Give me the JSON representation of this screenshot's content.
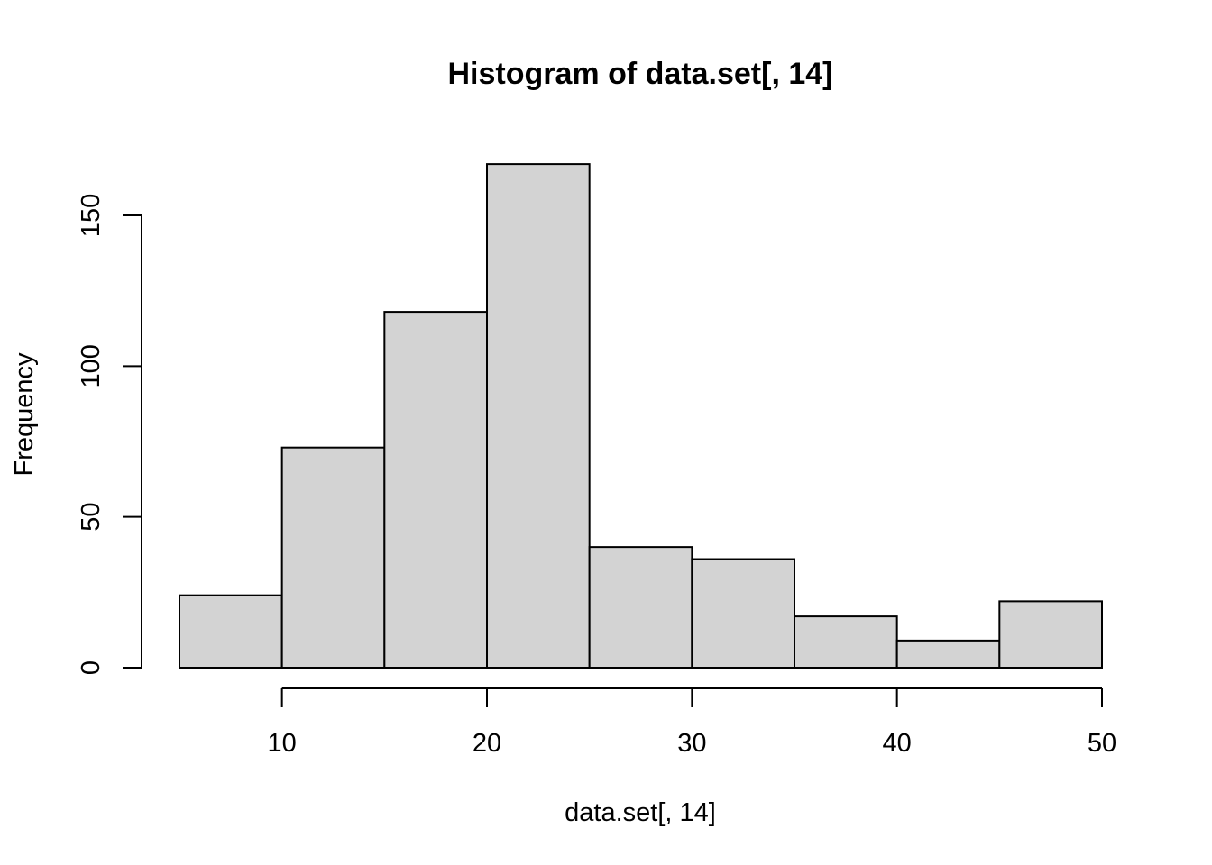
{
  "chart_data": {
    "type": "bar",
    "title": "Histogram of data.set[, 14]",
    "xlabel": "data.set[, 14]",
    "ylabel": "Frequency",
    "bins": [
      {
        "start": 5,
        "end": 10,
        "count": 24
      },
      {
        "start": 10,
        "end": 15,
        "count": 73
      },
      {
        "start": 15,
        "end": 20,
        "count": 118
      },
      {
        "start": 20,
        "end": 25,
        "count": 167
      },
      {
        "start": 25,
        "end": 30,
        "count": 40
      },
      {
        "start": 30,
        "end": 35,
        "count": 36
      },
      {
        "start": 35,
        "end": 40,
        "count": 17
      },
      {
        "start": 40,
        "end": 45,
        "count": 9
      },
      {
        "start": 45,
        "end": 50,
        "count": 22
      }
    ],
    "x_ticks": [
      10,
      20,
      30,
      40,
      50
    ],
    "y_ticks": [
      0,
      50,
      100,
      150
    ],
    "xlim": [
      5,
      50
    ],
    "ylim": [
      0,
      167
    ],
    "bar_color": "#d3d3d3",
    "border_color": "#000000",
    "grid": false,
    "legend": "none"
  }
}
